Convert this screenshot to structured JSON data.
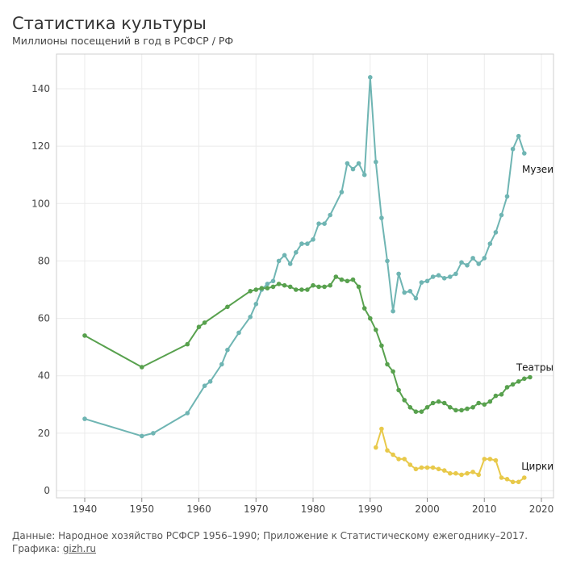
{
  "header": {
    "title": "Статистика культуры",
    "subtitle": "Миллионы посещений в год в РСФСР / РФ"
  },
  "footer": {
    "source": "Данные: Народное хозяйство РСФСР 1956–1990; Приложение к Статистическому ежегоднику–2017.",
    "credit_prefix": "Графика: ",
    "credit_link": "gizh.ru"
  },
  "chart_data": {
    "type": "line",
    "title": "Статистика культуры",
    "subtitle": "Миллионы посещений в год в РСФСР / РФ",
    "xlabel": "",
    "ylabel": "",
    "xlim": [
      1935,
      2022
    ],
    "ylim": [
      0,
      148
    ],
    "x_ticks": [
      1940,
      1950,
      1960,
      1970,
      1980,
      1990,
      2000,
      2010,
      2020
    ],
    "y_ticks": [
      0,
      20,
      40,
      60,
      80,
      100,
      120,
      140
    ],
    "grid": true,
    "series": [
      {
        "name": "Музеи",
        "color": "#6fb5b3",
        "points": [
          [
            1940,
            25
          ],
          [
            1950,
            19
          ],
          [
            1952,
            20
          ],
          [
            1958,
            27
          ],
          [
            1961,
            36.5
          ],
          [
            1962,
            38
          ],
          [
            1964,
            44
          ],
          [
            1965,
            49
          ],
          [
            1967,
            55
          ],
          [
            1969,
            60.5
          ],
          [
            1970,
            65
          ],
          [
            1971,
            70
          ],
          [
            1972,
            72
          ],
          [
            1973,
            73
          ],
          [
            1974,
            80
          ],
          [
            1975,
            82
          ],
          [
            1976,
            79
          ],
          [
            1977,
            83
          ],
          [
            1978,
            86
          ],
          [
            1979,
            86
          ],
          [
            1980,
            87.5
          ],
          [
            1981,
            93
          ],
          [
            1982,
            93
          ],
          [
            1983,
            96
          ],
          [
            1985,
            104
          ],
          [
            1986,
            114
          ],
          [
            1987,
            112
          ],
          [
            1988,
            114
          ],
          [
            1989,
            110
          ],
          [
            1990,
            144
          ],
          [
            1991,
            114.5
          ],
          [
            1992,
            95
          ],
          [
            1993,
            80
          ],
          [
            1994,
            62.5
          ],
          [
            1995,
            75.5
          ],
          [
            1996,
            69
          ],
          [
            1997,
            69.5
          ],
          [
            1998,
            67
          ],
          [
            1999,
            72.5
          ],
          [
            2000,
            73
          ],
          [
            2001,
            74.5
          ],
          [
            2002,
            75
          ],
          [
            2003,
            74
          ],
          [
            2004,
            74.5
          ],
          [
            2005,
            75.5
          ],
          [
            2006,
            79.5
          ],
          [
            2007,
            78.5
          ],
          [
            2008,
            81
          ],
          [
            2009,
            79
          ],
          [
            2010,
            81
          ],
          [
            2011,
            86
          ],
          [
            2012,
            90
          ],
          [
            2013,
            96
          ],
          [
            2014,
            102.5
          ],
          [
            2015,
            119
          ],
          [
            2016,
            123.5
          ],
          [
            2017,
            117.5
          ]
        ]
      },
      {
        "name": "Театры",
        "color": "#58a14e",
        "points": [
          [
            1940,
            54
          ],
          [
            1950,
            43
          ],
          [
            1958,
            51
          ],
          [
            1960,
            57
          ],
          [
            1961,
            58.5
          ],
          [
            1965,
            64
          ],
          [
            1969,
            69.5
          ],
          [
            1970,
            70
          ],
          [
            1971,
            70.5
          ],
          [
            1972,
            70.5
          ],
          [
            1973,
            71
          ],
          [
            1974,
            72
          ],
          [
            1975,
            71.5
          ],
          [
            1976,
            71
          ],
          [
            1977,
            70
          ],
          [
            1978,
            70
          ],
          [
            1979,
            70
          ],
          [
            1980,
            71.5
          ],
          [
            1981,
            71
          ],
          [
            1982,
            71
          ],
          [
            1983,
            71.5
          ],
          [
            1984,
            74.5
          ],
          [
            1985,
            73.5
          ],
          [
            1986,
            73
          ],
          [
            1987,
            73.5
          ],
          [
            1988,
            71
          ],
          [
            1989,
            63.5
          ],
          [
            1990,
            60
          ],
          [
            1991,
            56
          ],
          [
            1992,
            50.5
          ],
          [
            1993,
            44
          ],
          [
            1994,
            41.5
          ],
          [
            1995,
            35
          ],
          [
            1996,
            31.5
          ],
          [
            1997,
            29
          ],
          [
            1998,
            27.5
          ],
          [
            1999,
            27.5
          ],
          [
            2000,
            29
          ],
          [
            2001,
            30.5
          ],
          [
            2002,
            31
          ],
          [
            2003,
            30.5
          ],
          [
            2004,
            29
          ],
          [
            2005,
            28
          ],
          [
            2006,
            28
          ],
          [
            2007,
            28.5
          ],
          [
            2008,
            29
          ],
          [
            2009,
            30.5
          ],
          [
            2010,
            30
          ],
          [
            2011,
            31
          ],
          [
            2012,
            33
          ],
          [
            2013,
            33.5
          ],
          [
            2014,
            36
          ],
          [
            2015,
            37
          ],
          [
            2016,
            38
          ],
          [
            2017,
            39
          ],
          [
            2018,
            39.5
          ]
        ]
      },
      {
        "name": "Цирки",
        "color": "#e8c94a",
        "points": [
          [
            1991,
            15
          ],
          [
            1992,
            21.5
          ],
          [
            1993,
            14
          ],
          [
            1994,
            12.5
          ],
          [
            1995,
            11
          ],
          [
            1996,
            11
          ],
          [
            1997,
            9
          ],
          [
            1998,
            7.5
          ],
          [
            1999,
            8
          ],
          [
            2000,
            8
          ],
          [
            2001,
            8
          ],
          [
            2002,
            7.5
          ],
          [
            2003,
            7
          ],
          [
            2004,
            6
          ],
          [
            2005,
            6
          ],
          [
            2006,
            5.5
          ],
          [
            2007,
            6
          ],
          [
            2008,
            6.5
          ],
          [
            2009,
            5.5
          ],
          [
            2010,
            11
          ],
          [
            2011,
            11
          ],
          [
            2012,
            10.5
          ],
          [
            2013,
            4.5
          ],
          [
            2014,
            4
          ],
          [
            2015,
            3
          ],
          [
            2016,
            3
          ],
          [
            2017,
            4.5
          ]
        ]
      }
    ]
  }
}
